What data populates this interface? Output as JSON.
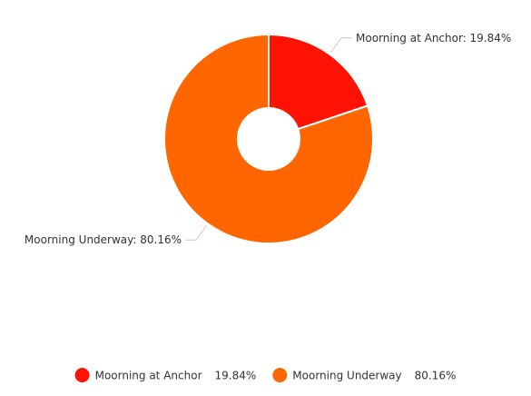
{
  "chart_data": {
    "type": "pie",
    "variant": "donut",
    "title": "",
    "legend_position": "bottom-center",
    "series": [
      {
        "name": "Moorning at Anchor",
        "value": 19.84,
        "value_label": "19.84%",
        "label": "Moorning at Anchor: 19.84%",
        "color": "#fe1203"
      },
      {
        "name": "Moorning Underway",
        "value": 80.16,
        "value_label": "80.16%",
        "label": "Moorning Underway: 80.16%",
        "color": "#ff6600"
      }
    ]
  }
}
